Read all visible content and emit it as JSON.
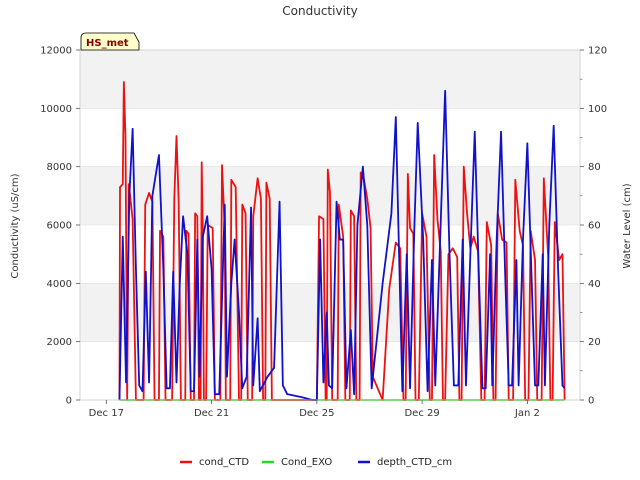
{
  "chart_data": {
    "type": "line",
    "title": "Conductivity",
    "tag": "HS_met",
    "ylabel": "Conductivity (uS/cm)",
    "y2label": "Water Level (cm)",
    "xlim": [
      "2023-12-16",
      "2024-01-04"
    ],
    "ylim": [
      0,
      12000
    ],
    "y2lim": [
      0,
      120
    ],
    "x_ticks": [
      {
        "date": "2023-12-17",
        "label": "Dec 17"
      },
      {
        "date": "2023-12-21",
        "label": "Dec 21"
      },
      {
        "date": "2023-12-25",
        "label": "Dec 25"
      },
      {
        "date": "2023-12-29",
        "label": "Dec 29"
      },
      {
        "date": "2024-01-02",
        "label": "Jan 2"
      }
    ],
    "y_ticks": [
      "0",
      "2000",
      "4000",
      "6000",
      "8000",
      "10000",
      "12000"
    ],
    "y2_ticks": [
      "0",
      "20",
      "40",
      "60",
      "80",
      "100",
      "120"
    ],
    "background_bands": "alternating grey bands between y ticks",
    "grid": true,
    "legend_position": "bottom-center",
    "colors": {
      "cond_CTD": "#ee1111",
      "Cond_EXO": "#22dd22",
      "depth_CTD_cm": "#1111cc",
      "band": "#f2f2f2",
      "grid": "#dddddd",
      "tag_bg": "#ffffcc"
    },
    "series": [
      {
        "name": "cond_CTD",
        "axis": "left",
        "points": [
          [
            "2023-12-17 12:00",
            0
          ],
          [
            "2023-12-17 12:30",
            7300
          ],
          [
            "2023-12-17 15:00",
            7400
          ],
          [
            "2023-12-17 16:00",
            10900
          ],
          [
            "2023-12-17 17:30",
            9000
          ],
          [
            "2023-12-17 19:00",
            0
          ],
          [
            "2023-12-17 20:30",
            7400
          ],
          [
            "2023-12-18 00:00",
            6200
          ],
          [
            "2023-12-18 03:00",
            0
          ],
          [
            "2023-12-18 10:00",
            0
          ],
          [
            "2023-12-18 11:30",
            6700
          ],
          [
            "2023-12-18 15:00",
            7100
          ],
          [
            "2023-12-18 18:00",
            6800
          ],
          [
            "2023-12-18 20:00",
            0
          ],
          [
            "2023-12-19 00:00",
            0
          ],
          [
            "2023-12-19 01:00",
            5800
          ],
          [
            "2023-12-19 04:00",
            5600
          ],
          [
            "2023-12-19 06:00",
            0
          ],
          [
            "2023-12-19 12:00",
            0
          ],
          [
            "2023-12-19 14:00",
            6900
          ],
          [
            "2023-12-19 16:00",
            9050
          ],
          [
            "2023-12-19 18:00",
            6800
          ],
          [
            "2023-12-19 20:00",
            0
          ],
          [
            "2023-12-20 00:00",
            0
          ],
          [
            "2023-12-20 01:00",
            5800
          ],
          [
            "2023-12-20 03:00",
            5700
          ],
          [
            "2023-12-20 05:00",
            0
          ],
          [
            "2023-12-20 08:00",
            0
          ],
          [
            "2023-12-20 09:00",
            6400
          ],
          [
            "2023-12-20 11:00",
            6300
          ],
          [
            "2023-12-20 12:30",
            0
          ],
          [
            "2023-12-20 14:00",
            0
          ],
          [
            "2023-12-20 15:00",
            8150
          ],
          [
            "2023-12-20 16:00",
            5800
          ],
          [
            "2023-12-20 17:00",
            0
          ],
          [
            "2023-12-20 19:00",
            0
          ],
          [
            "2023-12-20 20:30",
            6000
          ],
          [
            "2023-12-21 01:00",
            5900
          ],
          [
            "2023-12-21 03:00",
            0
          ],
          [
            "2023-12-21 08:00",
            0
          ],
          [
            "2023-12-21 09:30",
            8050
          ],
          [
            "2023-12-21 12:00",
            5900
          ],
          [
            "2023-12-21 13:00",
            0
          ],
          [
            "2023-12-21 17:00",
            0
          ],
          [
            "2023-12-21 18:00",
            7550
          ],
          [
            "2023-12-21 22:00",
            7300
          ],
          [
            "2023-12-22 01:00",
            0
          ],
          [
            "2023-12-22 03:00",
            0
          ],
          [
            "2023-12-22 04:00",
            6700
          ],
          [
            "2023-12-22 07:00",
            6400
          ],
          [
            "2023-12-22 09:00",
            0
          ],
          [
            "2023-12-22 13:00",
            0
          ],
          [
            "2023-12-22 14:00",
            6300
          ],
          [
            "2023-12-22 18:00",
            7600
          ],
          [
            "2023-12-22 21:00",
            6900
          ],
          [
            "2023-12-22 23:00",
            0
          ],
          [
            "2023-12-23 01:00",
            0
          ],
          [
            "2023-12-23 02:00",
            7450
          ],
          [
            "2023-12-23 05:00",
            6900
          ],
          [
            "2023-12-23 07:00",
            0
          ],
          [
            "2023-12-23 11:00",
            0
          ],
          [
            "2023-12-23 19:00",
            0
          ],
          [
            "2023-12-24 12:00",
            0
          ],
          [
            "2023-12-25 00:00",
            0
          ],
          [
            "2023-12-25 02:00",
            6300
          ],
          [
            "2023-12-25 06:00",
            6200
          ],
          [
            "2023-12-25 08:00",
            0
          ],
          [
            "2023-12-25 09:00",
            0
          ],
          [
            "2023-12-25 10:00",
            7900
          ],
          [
            "2023-12-25 12:00",
            7100
          ],
          [
            "2023-12-25 14:00",
            0
          ],
          [
            "2023-12-25 19:00",
            0
          ],
          [
            "2023-12-25 20:00",
            6700
          ],
          [
            "2023-12-26 00:00",
            5600
          ],
          [
            "2023-12-26 02:00",
            0
          ],
          [
            "2023-12-26 06:00",
            0
          ],
          [
            "2023-12-26 07:00",
            6500
          ],
          [
            "2023-12-26 10:00",
            6300
          ],
          [
            "2023-12-26 12:00",
            0
          ],
          [
            "2023-12-26 15:00",
            0
          ],
          [
            "2023-12-26 16:00",
            7800
          ],
          [
            "2023-12-26 19:00",
            7550
          ],
          [
            "2023-12-26 22:00",
            6900
          ],
          [
            "2023-12-27 01:00",
            5900
          ],
          [
            "2023-12-27 03:00",
            800
          ],
          [
            "2023-12-27 12:00",
            0
          ],
          [
            "2023-12-27 18:00",
            3800
          ],
          [
            "2023-12-28 00:00",
            5400
          ],
          [
            "2023-12-28 04:00",
            5200
          ],
          [
            "2023-12-28 07:00",
            0
          ],
          [
            "2023-12-28 09:00",
            0
          ],
          [
            "2023-12-28 11:00",
            7750
          ],
          [
            "2023-12-28 13:00",
            5900
          ],
          [
            "2023-12-28 16:00",
            5700
          ],
          [
            "2023-12-28 18:00",
            0
          ],
          [
            "2023-12-28 21:00",
            0
          ],
          [
            "2023-12-29 00:00",
            6400
          ],
          [
            "2023-12-29 04:00",
            5600
          ],
          [
            "2023-12-29 07:00",
            0
          ],
          [
            "2023-12-29 09:00",
            0
          ],
          [
            "2023-12-29 11:00",
            8400
          ],
          [
            "2023-12-29 14:00",
            6200
          ],
          [
            "2023-12-29 17:00",
            5100
          ],
          [
            "2023-12-29 19:00",
            0
          ],
          [
            "2023-12-29 21:00",
            0
          ],
          [
            "2023-12-30 00:00",
            5000
          ],
          [
            "2023-12-30 04:00",
            5200
          ],
          [
            "2023-12-30 08:00",
            4900
          ],
          [
            "2023-12-30 10:00",
            0
          ],
          [
            "2023-12-30 12:00",
            0
          ],
          [
            "2023-12-30 14:00",
            8000
          ],
          [
            "2023-12-30 17:00",
            6400
          ],
          [
            "2023-12-30 20:00",
            5200
          ],
          [
            "2023-12-30 23:00",
            5600
          ],
          [
            "2023-12-31 03:00",
            5100
          ],
          [
            "2023-12-31 06:00",
            0
          ],
          [
            "2023-12-31 09:00",
            0
          ],
          [
            "2023-12-31 11:00",
            6100
          ],
          [
            "2023-12-31 15:00",
            5300
          ],
          [
            "2023-12-31 17:00",
            0
          ],
          [
            "2023-12-31 19:00",
            0
          ],
          [
            "2023-12-31 21:00",
            6400
          ],
          [
            "2024-01-01 01:00",
            5500
          ],
          [
            "2024-01-01 05:00",
            5400
          ],
          [
            "2024-01-01 07:00",
            0
          ],
          [
            "2024-01-01 11:00",
            0
          ],
          [
            "2024-01-01 13:00",
            7550
          ],
          [
            "2024-01-01 17:00",
            5800
          ],
          [
            "2024-01-01 20:00",
            5300
          ],
          [
            "2024-01-01 22:00",
            0
          ],
          [
            "2024-01-02 01:00",
            0
          ],
          [
            "2024-01-02 03:00",
            5800
          ],
          [
            "2024-01-02 07:00",
            4800
          ],
          [
            "2024-01-02 09:00",
            0
          ],
          [
            "2024-01-02 13:00",
            0
          ],
          [
            "2024-01-02 15:00",
            7600
          ],
          [
            "2024-01-02 19:00",
            4900
          ],
          [
            "2024-01-02 21:00",
            0
          ],
          [
            "2024-01-02 23:00",
            0
          ],
          [
            "2024-01-03 01:00",
            6100
          ],
          [
            "2024-01-03 05:00",
            4800
          ],
          [
            "2024-01-03 08:00",
            5000
          ],
          [
            "2024-01-03 10:00",
            0
          ]
        ]
      },
      {
        "name": "Cond_EXO",
        "axis": "left",
        "points": [
          [
            "2023-12-17 12:00",
            0
          ],
          [
            "2024-01-03 10:00",
            0
          ]
        ]
      },
      {
        "name": "depth_CTD_cm",
        "axis": "right",
        "points": [
          [
            "2023-12-17 12:00",
            0
          ],
          [
            "2023-12-17 15:00",
            56
          ],
          [
            "2023-12-17 18:00",
            6
          ],
          [
            "2023-12-17 21:00",
            70
          ],
          [
            "2023-12-18 00:00",
            93
          ],
          [
            "2023-12-18 03:00",
            45
          ],
          [
            "2023-12-18 06:00",
            5
          ],
          [
            "2023-12-18 09:00",
            3
          ],
          [
            "2023-12-18 12:00",
            44
          ],
          [
            "2023-12-18 15:00",
            6
          ],
          [
            "2023-12-18 18:00",
            70
          ],
          [
            "2023-12-19 00:00",
            84
          ],
          [
            "2023-12-19 04:00",
            45
          ],
          [
            "2023-12-19 07:00",
            4
          ],
          [
            "2023-12-19 10:00",
            4
          ],
          [
            "2023-12-19 13:00",
            44
          ],
          [
            "2023-12-19 16:00",
            6
          ],
          [
            "2023-12-19 19:00",
            40
          ],
          [
            "2023-12-19 22:00",
            63
          ],
          [
            "2023-12-20 02:00",
            50
          ],
          [
            "2023-12-20 05:00",
            3
          ],
          [
            "2023-12-20 08:00",
            3
          ],
          [
            "2023-12-20 11:00",
            55
          ],
          [
            "2023-12-20 13:00",
            8
          ],
          [
            "2023-12-20 16:00",
            56
          ],
          [
            "2023-12-20 20:00",
            63
          ],
          [
            "2023-12-21 00:00",
            45
          ],
          [
            "2023-12-21 03:00",
            2
          ],
          [
            "2023-12-21 07:00",
            2
          ],
          [
            "2023-12-21 12:00",
            67
          ],
          [
            "2023-12-21 14:00",
            8
          ],
          [
            "2023-12-21 18:00",
            40
          ],
          [
            "2023-12-21 21:00",
            55
          ],
          [
            "2023-12-22 01:00",
            30
          ],
          [
            "2023-12-22 04:00",
            4
          ],
          [
            "2023-12-22 08:00",
            8
          ],
          [
            "2023-12-22 12:00",
            66
          ],
          [
            "2023-12-22 14:00",
            5
          ],
          [
            "2023-12-22 18:00",
            28
          ],
          [
            "2023-12-22 20:00",
            3
          ],
          [
            "2023-12-23 03:00",
            8
          ],
          [
            "2023-12-23 09:00",
            11
          ],
          [
            "2023-12-23 14:00",
            68
          ],
          [
            "2023-12-23 17:00",
            5
          ],
          [
            "2023-12-23 21:00",
            2
          ],
          [
            "2023-12-24 10:00",
            1
          ],
          [
            "2023-12-24 20:00",
            0
          ],
          [
            "2023-12-25 00:00",
            0
          ],
          [
            "2023-12-25 03:00",
            55
          ],
          [
            "2023-12-25 06:00",
            6
          ],
          [
            "2023-12-25 09:00",
            30
          ],
          [
            "2023-12-25 11:00",
            5
          ],
          [
            "2023-12-25 14:00",
            4
          ],
          [
            "2023-12-25 18:00",
            68
          ],
          [
            "2023-12-25 21:00",
            55
          ],
          [
            "2023-12-26 00:00",
            55
          ],
          [
            "2023-12-26 03:00",
            4
          ],
          [
            "2023-12-26 07:00",
            24
          ],
          [
            "2023-12-26 10:00",
            2
          ],
          [
            "2023-12-26 13:00",
            60
          ],
          [
            "2023-12-26 18:00",
            80
          ],
          [
            "2023-12-26 22:00",
            60
          ],
          [
            "2023-12-27 02:00",
            4
          ],
          [
            "2023-12-27 12:00",
            40
          ],
          [
            "2023-12-27 20:00",
            64
          ],
          [
            "2023-12-28 00:00",
            97
          ],
          [
            "2023-12-28 03:00",
            50
          ],
          [
            "2023-12-28 06:00",
            3
          ],
          [
            "2023-12-28 10:00",
            50
          ],
          [
            "2023-12-28 13:00",
            4
          ],
          [
            "2023-12-28 17:00",
            60
          ],
          [
            "2023-12-28 20:00",
            95
          ],
          [
            "2023-12-29 01:00",
            55
          ],
          [
            "2023-12-29 05:00",
            3
          ],
          [
            "2023-12-29 09:00",
            48
          ],
          [
            "2023-12-29 12:00",
            5
          ],
          [
            "2023-12-29 16:00",
            50
          ],
          [
            "2023-12-29 21:00",
            106
          ],
          [
            "2023-12-30 01:00",
            50
          ],
          [
            "2023-12-30 05:00",
            5
          ],
          [
            "2023-12-30 09:00",
            5
          ],
          [
            "2023-12-30 13:00",
            55
          ],
          [
            "2023-12-30 16:00",
            5
          ],
          [
            "2023-12-30 20:00",
            50
          ],
          [
            "2023-12-31 00:00",
            92
          ],
          [
            "2023-12-31 04:00",
            40
          ],
          [
            "2023-12-31 07:00",
            4
          ],
          [
            "2023-12-31 10:00",
            4
          ],
          [
            "2023-12-31 14:00",
            50
          ],
          [
            "2023-12-31 16:00",
            5
          ],
          [
            "2023-12-31 20:00",
            55
          ],
          [
            "2024-01-01 00:00",
            92
          ],
          [
            "2024-01-01 04:00",
            40
          ],
          [
            "2024-01-01 07:00",
            5
          ],
          [
            "2024-01-01 10:00",
            5
          ],
          [
            "2024-01-01 14:00",
            48
          ],
          [
            "2024-01-01 16:00",
            5
          ],
          [
            "2024-01-01 20:00",
            55
          ],
          [
            "2024-01-02 00:00",
            88
          ],
          [
            "2024-01-02 04:00",
            40
          ],
          [
            "2024-01-02 07:00",
            5
          ],
          [
            "2024-01-02 10:00",
            5
          ],
          [
            "2024-01-02 14:00",
            50
          ],
          [
            "2024-01-02 16:00",
            5
          ],
          [
            "2024-01-02 20:00",
            60
          ],
          [
            "2024-01-03 00:00",
            94
          ],
          [
            "2024-01-03 04:00",
            45
          ],
          [
            "2024-01-03 08:00",
            5
          ],
          [
            "2024-01-03 10:00",
            4
          ]
        ]
      }
    ]
  }
}
